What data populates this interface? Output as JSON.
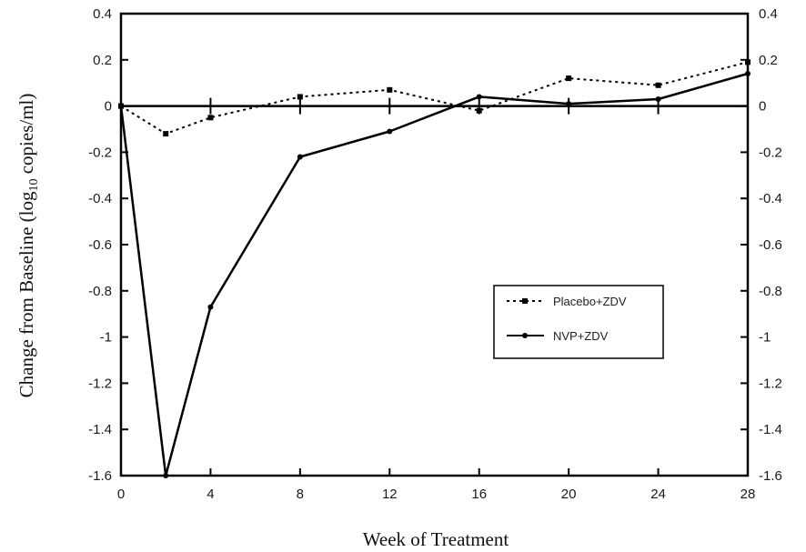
{
  "chart_data": {
    "type": "line",
    "title": "",
    "xlabel": "Week of Treatment",
    "ylabel_main": "Change from Baseline (log",
    "ylabel_sub": "10",
    "ylabel_tail": " copies/ml)",
    "xlim": [
      0,
      28
    ],
    "ylim": [
      -1.6,
      0.4
    ],
    "x_ticks": [
      0,
      4,
      8,
      12,
      16,
      20,
      24,
      28
    ],
    "y_ticks": [
      0.4,
      0.2,
      0,
      -0.2,
      -0.4,
      -0.6,
      -0.8,
      -1,
      -1.2,
      -1.4,
      -1.6
    ],
    "y_tick_labels": [
      "0.4",
      "0.2",
      "0",
      "-0.2",
      "-0.4",
      "-0.6",
      "-0.8",
      "-1",
      "-1.2",
      "-1.4",
      "-1.6"
    ],
    "grid": false,
    "zero_line": true,
    "legend_position": "right",
    "series": [
      {
        "name": "Placebo+ZDV",
        "style": "dotted",
        "marker": "square",
        "x": [
          0,
          2,
          4,
          8,
          12,
          16,
          20,
          24,
          28
        ],
        "values": [
          0,
          -0.12,
          -0.05,
          0.04,
          0.07,
          -0.02,
          0.12,
          0.09,
          0.19
        ]
      },
      {
        "name": "NVP+ZDV",
        "style": "solid",
        "marker": "dot",
        "x": [
          0,
          2,
          4,
          8,
          12,
          16,
          20,
          24,
          28
        ],
        "values": [
          0,
          -1.6,
          -0.87,
          -0.22,
          -0.11,
          0.04,
          0.01,
          0.03,
          0.14
        ]
      }
    ],
    "colors": {
      "line": "#000000",
      "axis": "#000000",
      "text": "#1a1a1a"
    }
  }
}
